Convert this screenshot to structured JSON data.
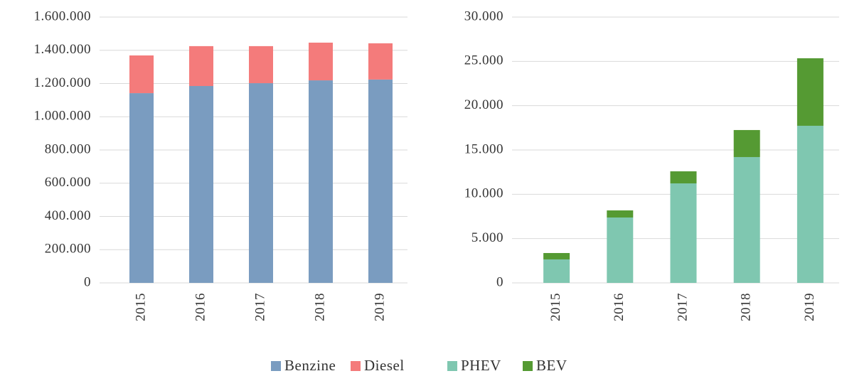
{
  "chart_data": [
    {
      "type": "stacked_bar",
      "categories": [
        "2015",
        "2016",
        "2017",
        "2018",
        "2019"
      ],
      "series": [
        {
          "name": "Benzine",
          "color": "#7a9cc0",
          "values": [
            1142000,
            1185000,
            1202000,
            1219000,
            1224000
          ]
        },
        {
          "name": "Diesel",
          "color": "#f47b7b",
          "values": [
            227000,
            240000,
            223000,
            227000,
            218000
          ]
        }
      ],
      "ylim": [
        0,
        1600000
      ],
      "yticks": [
        0,
        {
          "value": 200000,
          "label": "200.000"
        },
        {
          "value": 400000,
          "label": "400.000"
        },
        {
          "value": 600000,
          "label": "600.000"
        },
        {
          "value": 800000,
          "label": "800.000"
        },
        {
          "value": 1000000,
          "label": "1.000.000"
        },
        {
          "value": 1200000,
          "label": "1.200.000"
        },
        {
          "value": 1400000,
          "label": "1.400.000"
        },
        {
          "value": 1600000,
          "label": "1.600.000"
        }
      ],
      "grid": true
    },
    {
      "type": "stacked_bar",
      "categories": [
        "2015",
        "2016",
        "2017",
        "2018",
        "2019"
      ],
      "series": [
        {
          "name": "PHEV",
          "color": "#7fc7b0",
          "values": [
            2650,
            7380,
            11230,
            14200,
            17730
          ]
        },
        {
          "name": "BEV",
          "color": "#559a33",
          "values": [
            720,
            800,
            1360,
            3050,
            7620
          ]
        }
      ],
      "ylim": [
        0,
        30000
      ],
      "yticks": [
        0,
        {
          "value": 5000,
          "label": "5.000"
        },
        {
          "value": 10000,
          "label": "10.000"
        },
        {
          "value": 15000,
          "label": "15.000"
        },
        {
          "value": 20000,
          "label": "20.000"
        },
        {
          "value": 25000,
          "label": "25.000"
        },
        {
          "value": 30000,
          "label": "30.000"
        }
      ],
      "grid": true
    }
  ]
}
